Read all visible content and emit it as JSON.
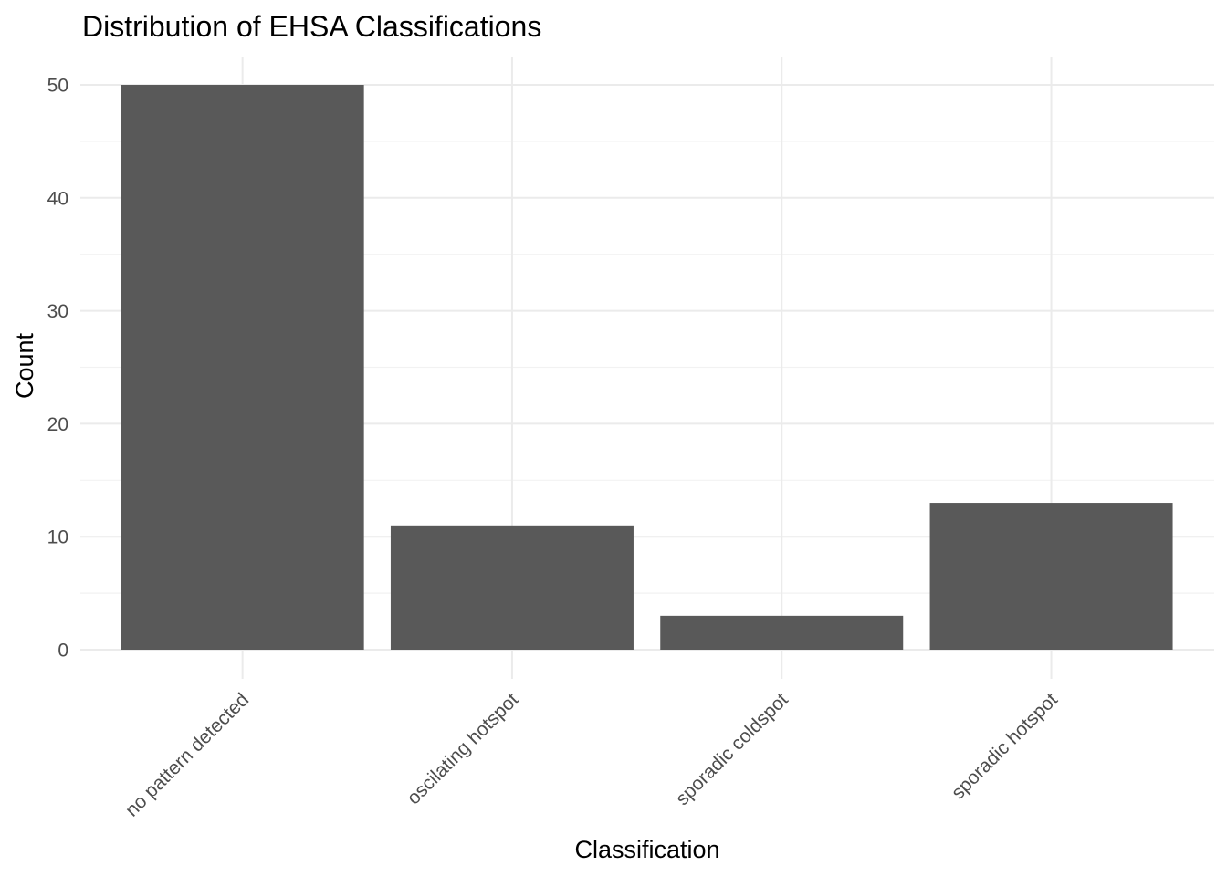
{
  "chart_data": {
    "type": "bar",
    "title": "Distribution of EHSA Classifications",
    "xlabel": "Classification",
    "ylabel": "Count",
    "categories": [
      "no pattern detected",
      "oscilating hotspot",
      "sporadic coldspot",
      "sporadic hotspot"
    ],
    "values": [
      50,
      11,
      3,
      13
    ],
    "ylim": [
      0,
      52.5
    ],
    "yticks": [
      0,
      10,
      20,
      30,
      40,
      50
    ],
    "grid": true,
    "legend": "none",
    "bar_color": "#595959"
  }
}
